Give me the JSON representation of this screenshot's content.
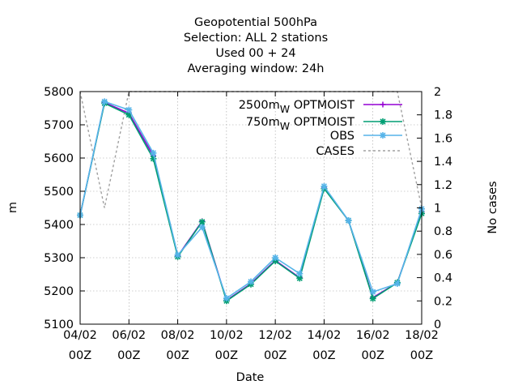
{
  "chart_data": {
    "type": "line",
    "title_lines": [
      "Geopotential 500hPa",
      "Selection: ALL       2 stations",
      "Used  00 + 24",
      "Averaging window: 24h"
    ],
    "xlabel": "Date",
    "ylabel": "m",
    "y2label": "No cases",
    "x_ticks": [
      {
        "day": 4,
        "line1": "04/02",
        "line2": "00Z"
      },
      {
        "day": 6,
        "line1": "06/02",
        "line2": "00Z"
      },
      {
        "day": 8,
        "line1": "08/02",
        "line2": "00Z"
      },
      {
        "day": 10,
        "line1": "10/02",
        "line2": "00Z"
      },
      {
        "day": 12,
        "line1": "12/02",
        "line2": "00Z"
      },
      {
        "day": 14,
        "line1": "14/02",
        "line2": "00Z"
      },
      {
        "day": 16,
        "line1": "16/02",
        "line2": "00Z"
      },
      {
        "day": 18,
        "line1": "18/02",
        "line2": "00Z"
      }
    ],
    "xlim": [
      4,
      18
    ],
    "ylim": [
      5100,
      5800
    ],
    "y_ticks": [
      5100,
      5200,
      5300,
      5400,
      5500,
      5600,
      5700,
      5800
    ],
    "y2lim": [
      0,
      2
    ],
    "y2_ticks": [
      "0",
      "0.2",
      "0.4",
      "0.6",
      "0.8",
      "1",
      "1.2",
      "1.4",
      "1.6",
      "1.8",
      "2"
    ],
    "grid": true,
    "legend_position": "top-right",
    "x": [
      4,
      5,
      6,
      7,
      8,
      9,
      10,
      11,
      12,
      13,
      14,
      15,
      16,
      17,
      18
    ],
    "series": [
      {
        "name": "2500m",
        "subscript": "W",
        "suffix": " OPTMOIST",
        "color": "#9400d3",
        "marker": "plus",
        "axis": "y",
        "values": [
          5428,
          5767,
          5735,
          5607,
          5305,
          5410,
          5172,
          5222,
          5292,
          5240,
          5510,
          5412,
          5180,
          5225,
          5438
        ]
      },
      {
        "name": "750m",
        "subscript": "W",
        "suffix": " OPTMOIST",
        "color": "#009e73",
        "marker": "star",
        "axis": "y",
        "values": [
          5428,
          5765,
          5730,
          5598,
          5303,
          5408,
          5170,
          5220,
          5290,
          5238,
          5508,
          5412,
          5177,
          5225,
          5433
        ]
      },
      {
        "name": "OBS",
        "subscript": "",
        "suffix": "",
        "color": "#56b4e9",
        "marker": "star",
        "axis": "y",
        "values": [
          5428,
          5770,
          5745,
          5615,
          5308,
          5392,
          5178,
          5228,
          5300,
          5252,
          5515,
          5412,
          5197,
          5222,
          5447
        ]
      },
      {
        "name": "CASES",
        "subscript": "",
        "suffix": "",
        "color": "#a0a0a0",
        "marker": "none",
        "dashed": true,
        "axis": "y2",
        "values": [
          2,
          1,
          2,
          2,
          2,
          2,
          2,
          2,
          2,
          2,
          2,
          2,
          2,
          2,
          1
        ]
      }
    ]
  }
}
